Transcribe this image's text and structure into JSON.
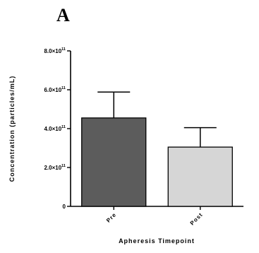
{
  "panel_label": "A",
  "chart_data": {
    "type": "bar",
    "title": "",
    "xlabel": "Apheresis Timepoint",
    "ylabel": "Concentration (particles/mL)",
    "categories": [
      "Pre",
      "Post"
    ],
    "values": [
      455000000000.0,
      305000000000.0
    ],
    "error_upper": [
      588000000000.0,
      405000000000.0
    ],
    "ylim": [
      0,
      800000000000.0
    ],
    "yticks": [
      {
        "value": 0,
        "mantissa": "0",
        "exponent": ""
      },
      {
        "value": 200000000000.0,
        "mantissa": "2.0×10",
        "exponent": "11"
      },
      {
        "value": 400000000000.0,
        "mantissa": "4.0×10",
        "exponent": "11"
      },
      {
        "value": 600000000000.0,
        "mantissa": "6.0×10",
        "exponent": "11"
      },
      {
        "value": 800000000000.0,
        "mantissa": "8.0×10",
        "exponent": "11"
      }
    ],
    "bar_colors": [
      "#5c5c5c",
      "#d6d6d6"
    ],
    "grid": false,
    "legend": "none"
  }
}
